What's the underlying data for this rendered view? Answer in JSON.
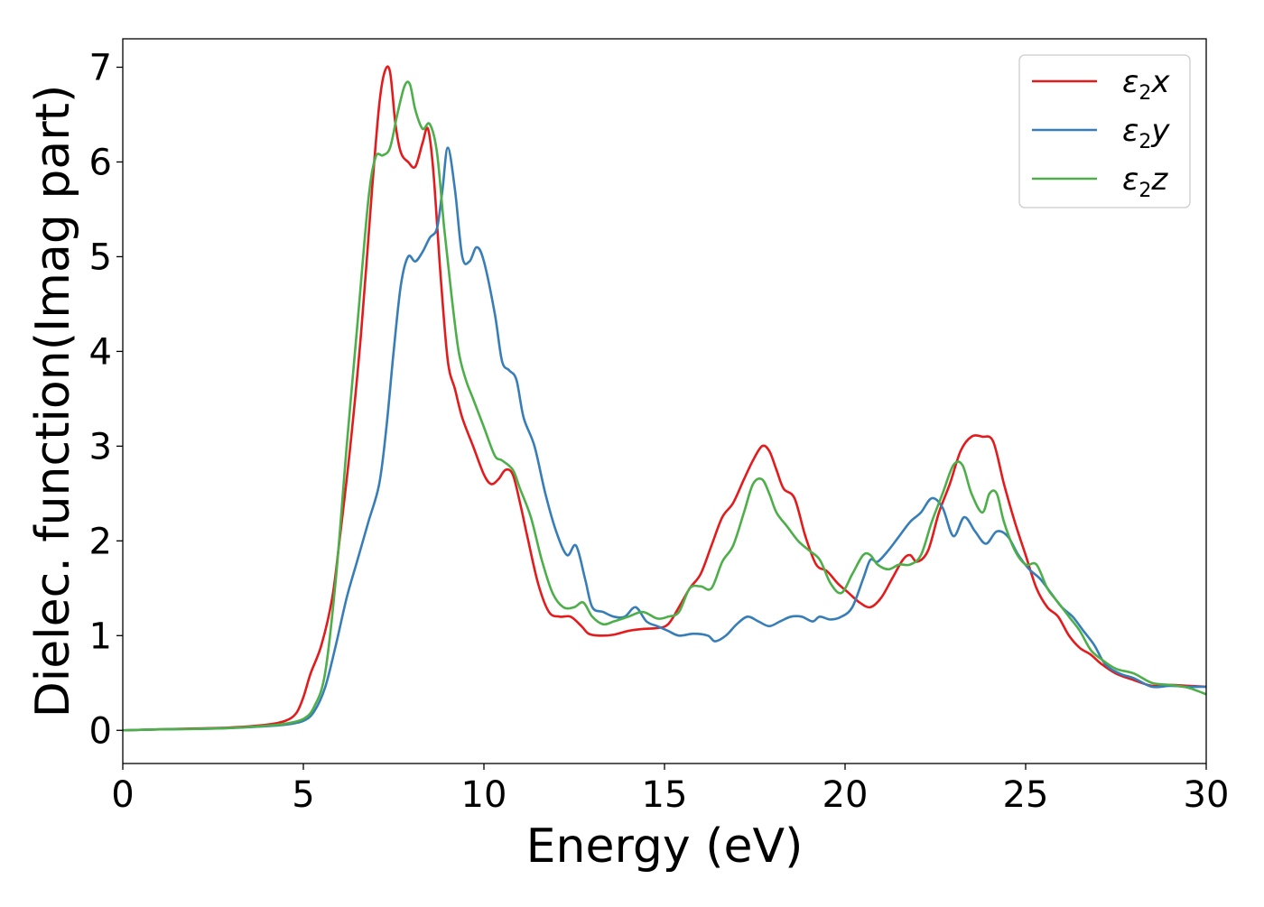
{
  "chart_data": {
    "type": "line",
    "title": "",
    "xlabel": "Energy (eV)",
    "ylabel": "Dielec. function(Imag part)",
    "xlim": [
      0,
      30
    ],
    "ylim": [
      -0.35,
      7.3
    ],
    "xticks": [
      0,
      5,
      10,
      15,
      20,
      25,
      30
    ],
    "yticks": [
      0,
      1,
      2,
      3,
      4,
      5,
      6,
      7
    ],
    "xtick_labels": [
      "0",
      "5",
      "10",
      "15",
      "20",
      "25",
      "30"
    ],
    "ytick_labels": [
      "0",
      "1",
      "2",
      "3",
      "4",
      "5",
      "6",
      "7"
    ],
    "grid": false,
    "legend_position": "top-right",
    "series": [
      {
        "name": "ε2x",
        "legend_base": "ε",
        "legend_sub": "2",
        "legend_var": "x",
        "color": "#e41a1c",
        "x": [
          0,
          1,
          2,
          3,
          4,
          4.5,
          4.8,
          5.0,
          5.2,
          5.5,
          5.8,
          6.0,
          6.3,
          6.6,
          6.9,
          7.1,
          7.25,
          7.4,
          7.55,
          7.7,
          7.9,
          8.1,
          8.3,
          8.45,
          8.6,
          8.8,
          9.0,
          9.2,
          9.4,
          9.7,
          10.0,
          10.2,
          10.4,
          10.6,
          10.8,
          11.0,
          11.2,
          11.5,
          11.8,
          12.1,
          12.4,
          12.7,
          12.9,
          13.2,
          13.6,
          14.0,
          14.4,
          14.8,
          15.1,
          15.4,
          15.7,
          16.0,
          16.3,
          16.6,
          16.9,
          17.2,
          17.45,
          17.7,
          17.9,
          18.1,
          18.3,
          18.6,
          18.9,
          19.2,
          19.5,
          19.8,
          20.1,
          20.4,
          20.7,
          21.0,
          21.3,
          21.6,
          21.8,
          22.0,
          22.3,
          22.6,
          22.9,
          23.2,
          23.5,
          23.8,
          24.1,
          24.4,
          24.7,
          25.0,
          25.3,
          25.6,
          25.9,
          26.2,
          26.5,
          26.8,
          27.1,
          27.5,
          28.0,
          28.5,
          29.0,
          29.5,
          30.0
        ],
        "y": [
          0.0,
          0.01,
          0.02,
          0.03,
          0.06,
          0.1,
          0.18,
          0.35,
          0.6,
          0.9,
          1.4,
          2.0,
          3.0,
          4.2,
          5.7,
          6.6,
          6.95,
          6.95,
          6.4,
          6.1,
          6.0,
          5.95,
          6.2,
          6.35,
          5.9,
          4.8,
          3.9,
          3.6,
          3.3,
          3.0,
          2.7,
          2.6,
          2.65,
          2.75,
          2.7,
          2.4,
          2.05,
          1.55,
          1.25,
          1.2,
          1.2,
          1.1,
          1.02,
          1.0,
          1.01,
          1.05,
          1.07,
          1.08,
          1.12,
          1.3,
          1.5,
          1.65,
          1.95,
          2.25,
          2.4,
          2.65,
          2.85,
          3.0,
          2.95,
          2.75,
          2.55,
          2.45,
          2.05,
          1.75,
          1.68,
          1.55,
          1.45,
          1.35,
          1.3,
          1.4,
          1.6,
          1.8,
          1.85,
          1.78,
          1.9,
          2.3,
          2.6,
          2.95,
          3.1,
          3.1,
          3.05,
          2.6,
          2.2,
          1.85,
          1.5,
          1.3,
          1.2,
          1.0,
          0.87,
          0.8,
          0.7,
          0.6,
          0.53,
          0.47,
          0.48,
          0.47,
          0.46
        ]
      },
      {
        "name": "ε2y",
        "legend_base": "ε",
        "legend_sub": "2",
        "legend_var": "y",
        "color": "#377eb8",
        "x": [
          0,
          1,
          2,
          3,
          4,
          4.5,
          5.0,
          5.3,
          5.6,
          5.9,
          6.2,
          6.5,
          6.8,
          7.1,
          7.3,
          7.5,
          7.7,
          7.9,
          8.1,
          8.3,
          8.5,
          8.7,
          8.85,
          9.0,
          9.2,
          9.4,
          9.6,
          9.8,
          10.0,
          10.3,
          10.5,
          10.7,
          10.9,
          11.1,
          11.4,
          11.7,
          12.0,
          12.3,
          12.55,
          12.8,
          13.0,
          13.3,
          13.6,
          13.9,
          14.2,
          14.5,
          14.8,
          15.1,
          15.4,
          15.8,
          16.2,
          16.4,
          16.7,
          17.0,
          17.3,
          17.6,
          17.9,
          18.2,
          18.5,
          18.8,
          19.1,
          19.3,
          19.6,
          19.9,
          20.2,
          20.5,
          20.7,
          20.9,
          21.2,
          21.5,
          21.8,
          22.1,
          22.4,
          22.7,
          23.0,
          23.3,
          23.6,
          23.9,
          24.2,
          24.5,
          24.8,
          25.1,
          25.4,
          25.7,
          26.0,
          26.3,
          26.6,
          26.9,
          27.2,
          27.6,
          28.0,
          28.5,
          29.0,
          29.5,
          30.0
        ],
        "y": [
          0.0,
          0.01,
          0.015,
          0.025,
          0.045,
          0.06,
          0.1,
          0.2,
          0.45,
          0.9,
          1.4,
          1.8,
          2.2,
          2.6,
          3.2,
          4.0,
          4.7,
          5.0,
          4.95,
          5.05,
          5.2,
          5.3,
          5.7,
          6.15,
          5.7,
          5.0,
          4.95,
          5.1,
          4.95,
          4.4,
          3.9,
          3.8,
          3.7,
          3.3,
          3.0,
          2.5,
          2.1,
          1.85,
          1.95,
          1.6,
          1.3,
          1.25,
          1.2,
          1.2,
          1.3,
          1.15,
          1.1,
          1.05,
          1.0,
          1.02,
          1.0,
          0.94,
          1.0,
          1.12,
          1.2,
          1.15,
          1.1,
          1.15,
          1.2,
          1.2,
          1.15,
          1.2,
          1.17,
          1.2,
          1.3,
          1.6,
          1.8,
          1.78,
          1.9,
          2.05,
          2.2,
          2.3,
          2.45,
          2.35,
          2.05,
          2.25,
          2.1,
          1.97,
          2.1,
          2.05,
          1.85,
          1.7,
          1.6,
          1.45,
          1.3,
          1.2,
          1.05,
          0.9,
          0.7,
          0.6,
          0.55,
          0.46,
          0.47,
          0.46,
          0.46
        ]
      },
      {
        "name": "ε2z",
        "legend_base": "ε",
        "legend_sub": "2",
        "legend_var": "z",
        "color": "#4daf4a",
        "x": [
          0,
          1,
          2,
          3,
          4,
          4.5,
          5.0,
          5.3,
          5.6,
          5.9,
          6.2,
          6.5,
          6.8,
          7.0,
          7.2,
          7.4,
          7.6,
          7.8,
          7.95,
          8.1,
          8.3,
          8.5,
          8.7,
          8.9,
          9.1,
          9.3,
          9.5,
          9.7,
          10.0,
          10.3,
          10.5,
          10.8,
          11.0,
          11.3,
          11.6,
          11.9,
          12.2,
          12.5,
          12.75,
          13.0,
          13.3,
          13.6,
          14.0,
          14.4,
          14.8,
          15.1,
          15.4,
          15.7,
          16.0,
          16.3,
          16.6,
          16.9,
          17.2,
          17.45,
          17.7,
          17.9,
          18.1,
          18.4,
          18.7,
          19.0,
          19.3,
          19.6,
          19.9,
          20.2,
          20.5,
          20.7,
          20.9,
          21.2,
          21.5,
          21.8,
          22.1,
          22.4,
          22.7,
          23.0,
          23.25,
          23.5,
          23.8,
          24.0,
          24.2,
          24.4,
          24.7,
          25.0,
          25.3,
          25.6,
          25.9,
          26.2,
          26.5,
          26.8,
          27.1,
          27.5,
          28.0,
          28.5,
          29.0,
          29.5,
          30.0
        ],
        "y": [
          0.0,
          0.01,
          0.015,
          0.025,
          0.05,
          0.07,
          0.12,
          0.25,
          0.6,
          1.6,
          3.0,
          4.3,
          5.6,
          6.05,
          6.07,
          6.15,
          6.5,
          6.8,
          6.82,
          6.55,
          6.35,
          6.4,
          6.1,
          5.3,
          4.6,
          4.0,
          3.7,
          3.5,
          3.2,
          2.9,
          2.85,
          2.75,
          2.55,
          2.25,
          1.8,
          1.45,
          1.3,
          1.3,
          1.35,
          1.2,
          1.12,
          1.15,
          1.2,
          1.25,
          1.18,
          1.2,
          1.25,
          1.5,
          1.52,
          1.5,
          1.78,
          1.95,
          2.3,
          2.6,
          2.65,
          2.5,
          2.3,
          2.15,
          2.0,
          1.9,
          1.8,
          1.55,
          1.45,
          1.65,
          1.85,
          1.85,
          1.75,
          1.7,
          1.75,
          1.75,
          1.85,
          2.2,
          2.5,
          2.8,
          2.8,
          2.5,
          2.3,
          2.5,
          2.5,
          2.2,
          1.9,
          1.75,
          1.75,
          1.5,
          1.35,
          1.2,
          1.05,
          0.85,
          0.75,
          0.65,
          0.6,
          0.5,
          0.48,
          0.45,
          0.38
        ]
      }
    ]
  }
}
